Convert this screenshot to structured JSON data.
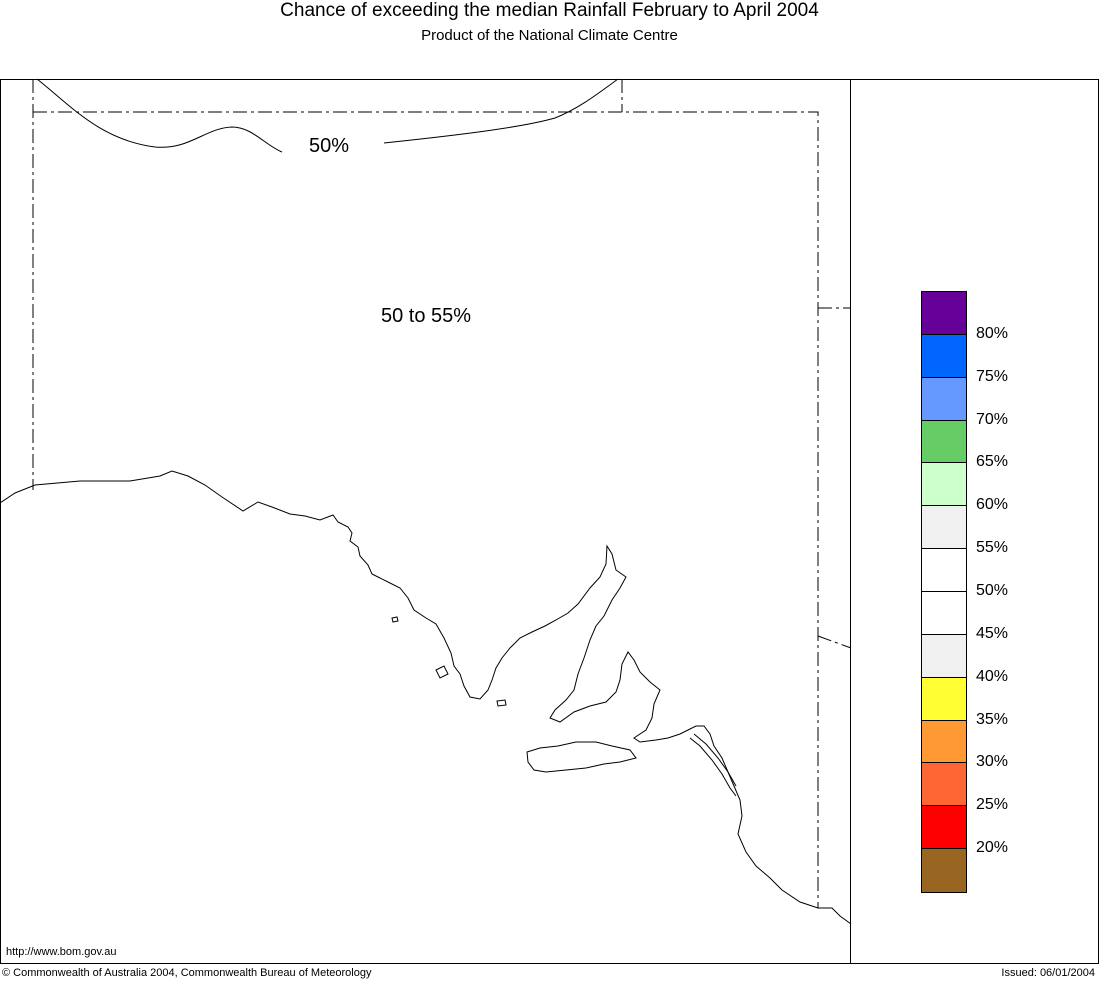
{
  "header": {
    "title": "Chance of exceeding the median Rainfall February to April 2004",
    "subtitle": "Product of the National Climate Centre"
  },
  "map": {
    "contour_label": "50%",
    "region_label": "50 to 55%"
  },
  "legend": {
    "swatches": [
      {
        "color": "#660099"
      },
      {
        "color": "#0066ff"
      },
      {
        "color": "#6699ff"
      },
      {
        "color": "#66cc66"
      },
      {
        "color": "#ccffcc"
      },
      {
        "color": "#f0f0f0"
      },
      {
        "color": "#ffffff"
      },
      {
        "color": "#ffffff"
      },
      {
        "color": "#f0f0f0"
      },
      {
        "color": "#ffff33"
      },
      {
        "color": "#ff9933"
      },
      {
        "color": "#ff6633"
      },
      {
        "color": "#ff0000"
      },
      {
        "color": "#996622"
      }
    ],
    "labels": [
      "80%",
      "75%",
      "70%",
      "65%",
      "60%",
      "55%",
      "50%",
      "45%",
      "40%",
      "35%",
      "30%",
      "25%",
      "20%"
    ]
  },
  "footer": {
    "url": "http://www.bom.gov.au",
    "copyright": "© Commonwealth of Australia 2004, Commonwealth Bureau of Meteorology",
    "issued": "Issued: 06/01/2004"
  }
}
